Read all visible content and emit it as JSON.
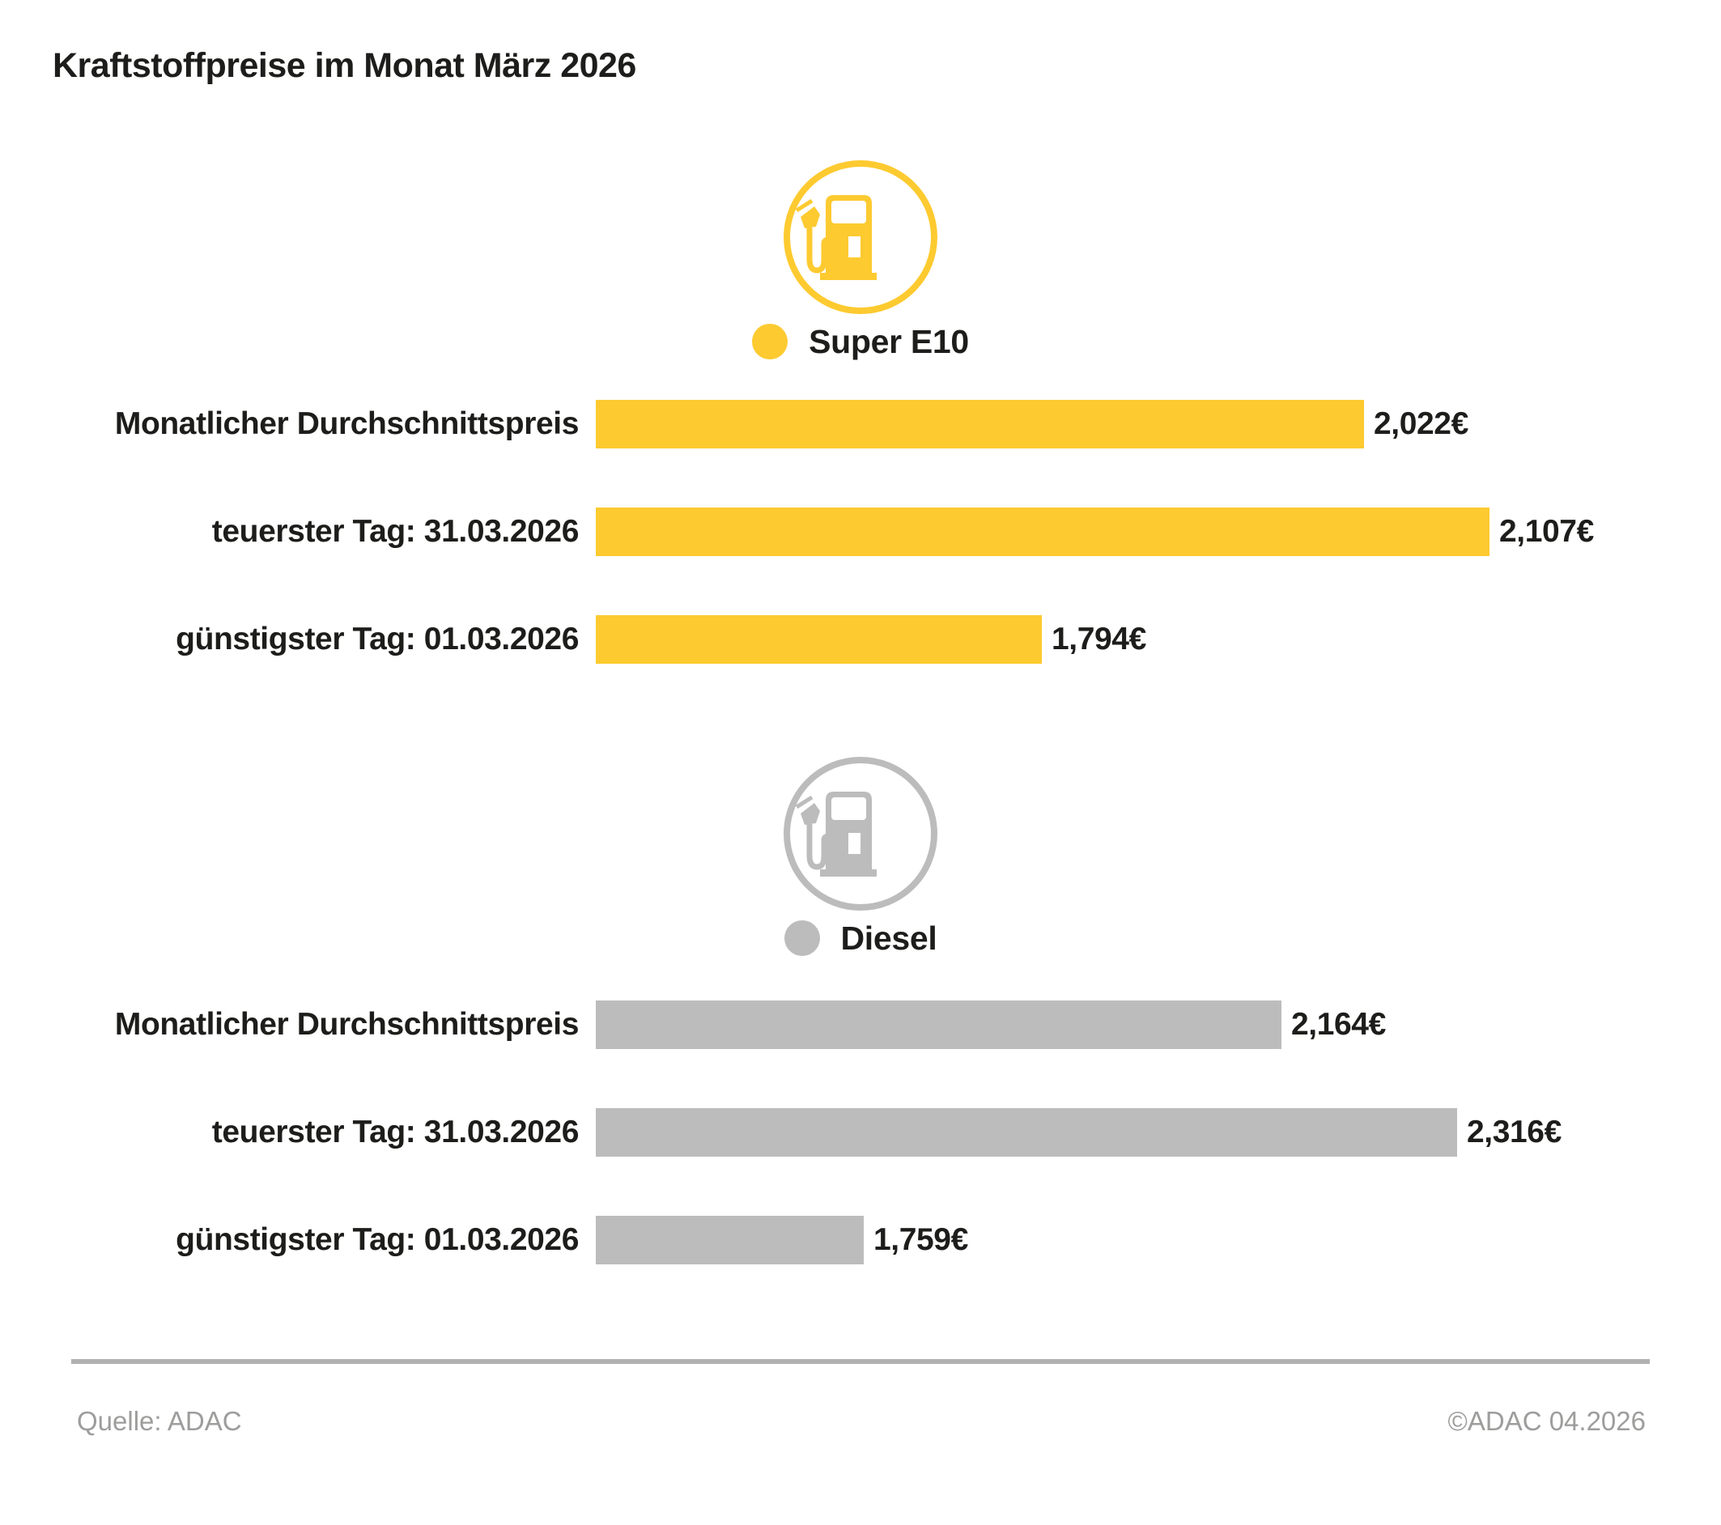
{
  "title": "Kraftstoffpreise im Monat März 2026",
  "footer": {
    "source": "Quelle: ADAC",
    "copyright": "©ADAC 04.2026"
  },
  "colors": {
    "super_e10": "#FDCA30",
    "diesel": "#BCBCBC",
    "text": "#1D1D1B",
    "footer_text": "#9D9D9C",
    "divider": "#B1B1B1",
    "background": "#FFFFFF"
  },
  "chart_data": {
    "type": "bar",
    "orientation": "horizontal",
    "currency": "€",
    "title": "Kraftstoffpreise im Monat März 2026",
    "legend_position": "above-each-section",
    "grid": false,
    "sections": [
      {
        "fuel": "Super E10",
        "icon": "fuel-pump-icon",
        "color": "#FDCA30",
        "rows": [
          {
            "label": "Monatlicher Durchschnittspreis",
            "value": 2.022,
            "value_label": "2,022€",
            "width_pct": 86.0
          },
          {
            "label": "teuerster Tag: 31.03.2026",
            "value": 2.107,
            "value_label": "2,107€",
            "width_pct": 100
          },
          {
            "label": "günstigster Tag: 01.03.2026",
            "value": 1.794,
            "value_label": "1,794€",
            "width_pct": 49.9
          }
        ]
      },
      {
        "fuel": "Diesel",
        "icon": "fuel-pump-icon",
        "color": "#BCBCBC",
        "rows": [
          {
            "label": "Monatlicher Durchschnittspreis",
            "value": 2.164,
            "value_label": "2,164€",
            "width_pct": 76.7
          },
          {
            "label": "teuerster Tag: 31.03.2026",
            "value": 2.316,
            "value_label": "2,316€",
            "width_pct": 96.4
          },
          {
            "label": "günstigster Tag: 01.03.2026",
            "value": 1.759,
            "value_label": "1,759€",
            "width_pct": 30.0
          }
        ]
      }
    ]
  }
}
